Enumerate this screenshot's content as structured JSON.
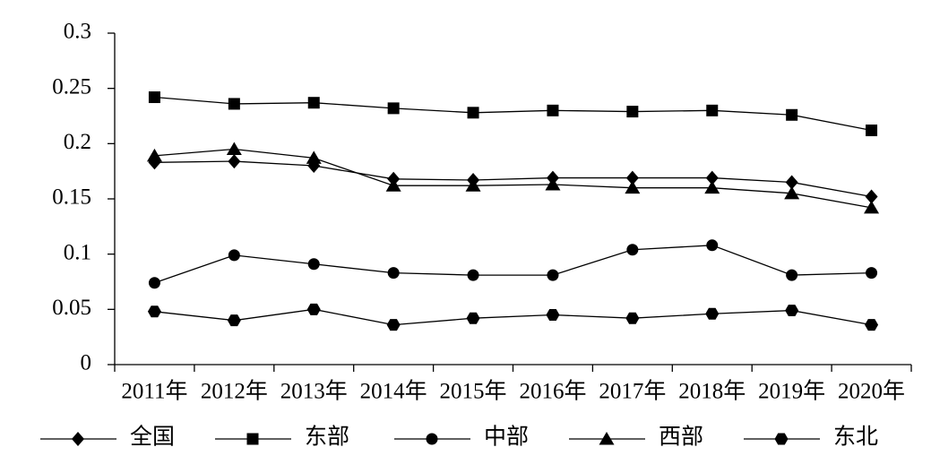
{
  "chart_data": {
    "type": "line",
    "categories": [
      "2011年",
      "2012年",
      "2013年",
      "2014年",
      "2015年",
      "2016年",
      "2017年",
      "2018年",
      "2019年",
      "2020年"
    ],
    "series": [
      {
        "name": "全国",
        "color": "#000000",
        "marker": "diamond",
        "values": [
          0.183,
          0.184,
          0.18,
          0.168,
          0.167,
          0.169,
          0.169,
          0.169,
          0.165,
          0.152
        ]
      },
      {
        "name": "东部",
        "color": "#000000",
        "marker": "square",
        "values": [
          0.242,
          0.236,
          0.237,
          0.232,
          0.228,
          0.23,
          0.229,
          0.23,
          0.226,
          0.212
        ]
      },
      {
        "name": "中部",
        "color": "#000000",
        "marker": "circle",
        "values": [
          0.074,
          0.099,
          0.091,
          0.083,
          0.081,
          0.081,
          0.104,
          0.108,
          0.081,
          0.083
        ]
      },
      {
        "name": "西部",
        "color": "#000000",
        "marker": "triangle",
        "values": [
          0.189,
          0.195,
          0.187,
          0.162,
          0.162,
          0.163,
          0.16,
          0.16,
          0.155,
          0.142
        ]
      },
      {
        "name": "东北",
        "color": "#000000",
        "marker": "hexagon",
        "values": [
          0.048,
          0.04,
          0.05,
          0.036,
          0.042,
          0.045,
          0.042,
          0.046,
          0.049,
          0.036
        ]
      }
    ],
    "ylim": [
      0,
      0.3
    ],
    "yticks": [
      0,
      0.05,
      0.1,
      0.15,
      0.2,
      0.25,
      0.3
    ],
    "grid": false,
    "legend": "bottom"
  }
}
